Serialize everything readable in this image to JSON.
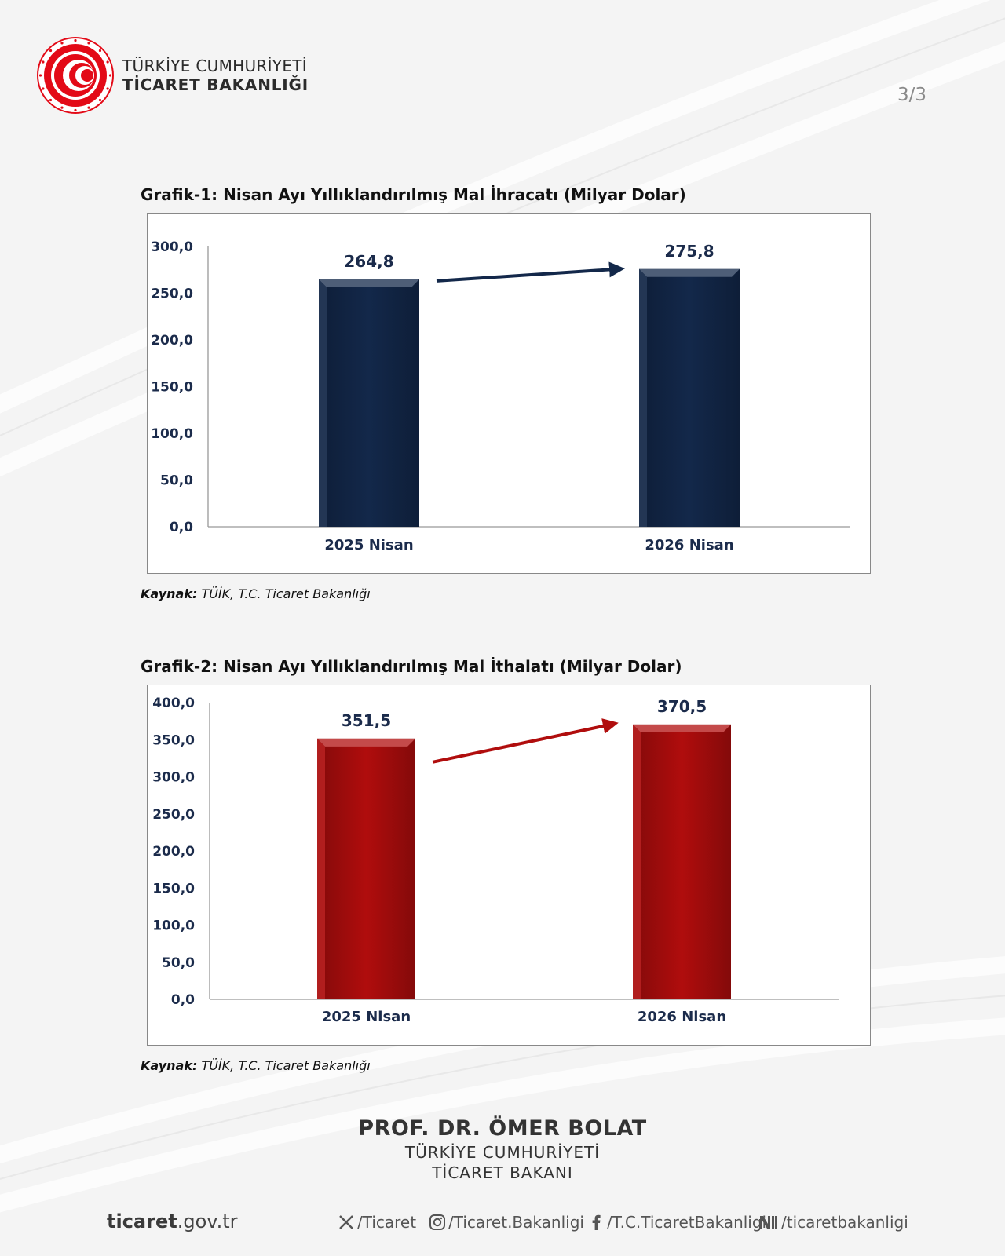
{
  "header": {
    "org_line1": "TÜRKİYE CUMHURİYETİ",
    "org_line2": "TİCARET BAKANLIĞI",
    "page_number": "3/3"
  },
  "chart_data": [
    {
      "type": "bar",
      "title": "Grafik-1: Nisan Ayı Yıllıklandırılmış Mal İhracatı (Milyar Dolar)",
      "categories": [
        "2025 Nisan",
        "2026 Nisan"
      ],
      "values": [
        264.8,
        275.8
      ],
      "value_labels": [
        "264,8",
        "275,8"
      ],
      "y_ticks": [
        "0,0",
        "50,0",
        "100,0",
        "150,0",
        "200,0",
        "250,0",
        "300,0"
      ],
      "ylim": [
        0,
        300
      ],
      "xlabel": "",
      "ylabel": "",
      "color": "#13284a",
      "grid": false,
      "annotation": "arrow-up-right",
      "source_label": "Kaynak:",
      "source_text": " TÜİK, T.C. Ticaret Bakanlığı"
    },
    {
      "type": "bar",
      "title": "Grafik-2: Nisan Ayı Yıllıklandırılmış Mal İthalatı (Milyar Dolar)",
      "categories": [
        "2025 Nisan",
        "2026 Nisan"
      ],
      "values": [
        351.5,
        370.5
      ],
      "value_labels": [
        "351,5",
        "370,5"
      ],
      "y_ticks": [
        "0,0",
        "50,0",
        "100,0",
        "150,0",
        "200,0",
        "250,0",
        "300,0",
        "350,0",
        "400,0"
      ],
      "ylim": [
        0,
        400
      ],
      "xlabel": "",
      "ylabel": "",
      "color": "#b00d0d",
      "grid": false,
      "annotation": "arrow-up-right",
      "source_label": "Kaynak:",
      "source_text": " TÜİK, T.C. Ticaret Bakanlığı"
    }
  ],
  "signature": {
    "name": "PROF. DR. ÖMER BOLAT",
    "role_line1": "TÜRKİYE CUMHURİYETİ",
    "role_line2": "TİCARET BAKANI"
  },
  "footer": {
    "site_bold": "ticaret",
    "site_rest": ".gov.tr",
    "social": [
      {
        "icon": "x-icon",
        "label": "/Ticaret"
      },
      {
        "icon": "instagram-icon",
        "label": "/Ticaret.Bakanligi"
      },
      {
        "icon": "facebook-icon",
        "label": "/T.C.TicaretBakanligi"
      },
      {
        "icon": "nsosyal-icon",
        "label": "/ticaretbakanligi"
      }
    ]
  }
}
